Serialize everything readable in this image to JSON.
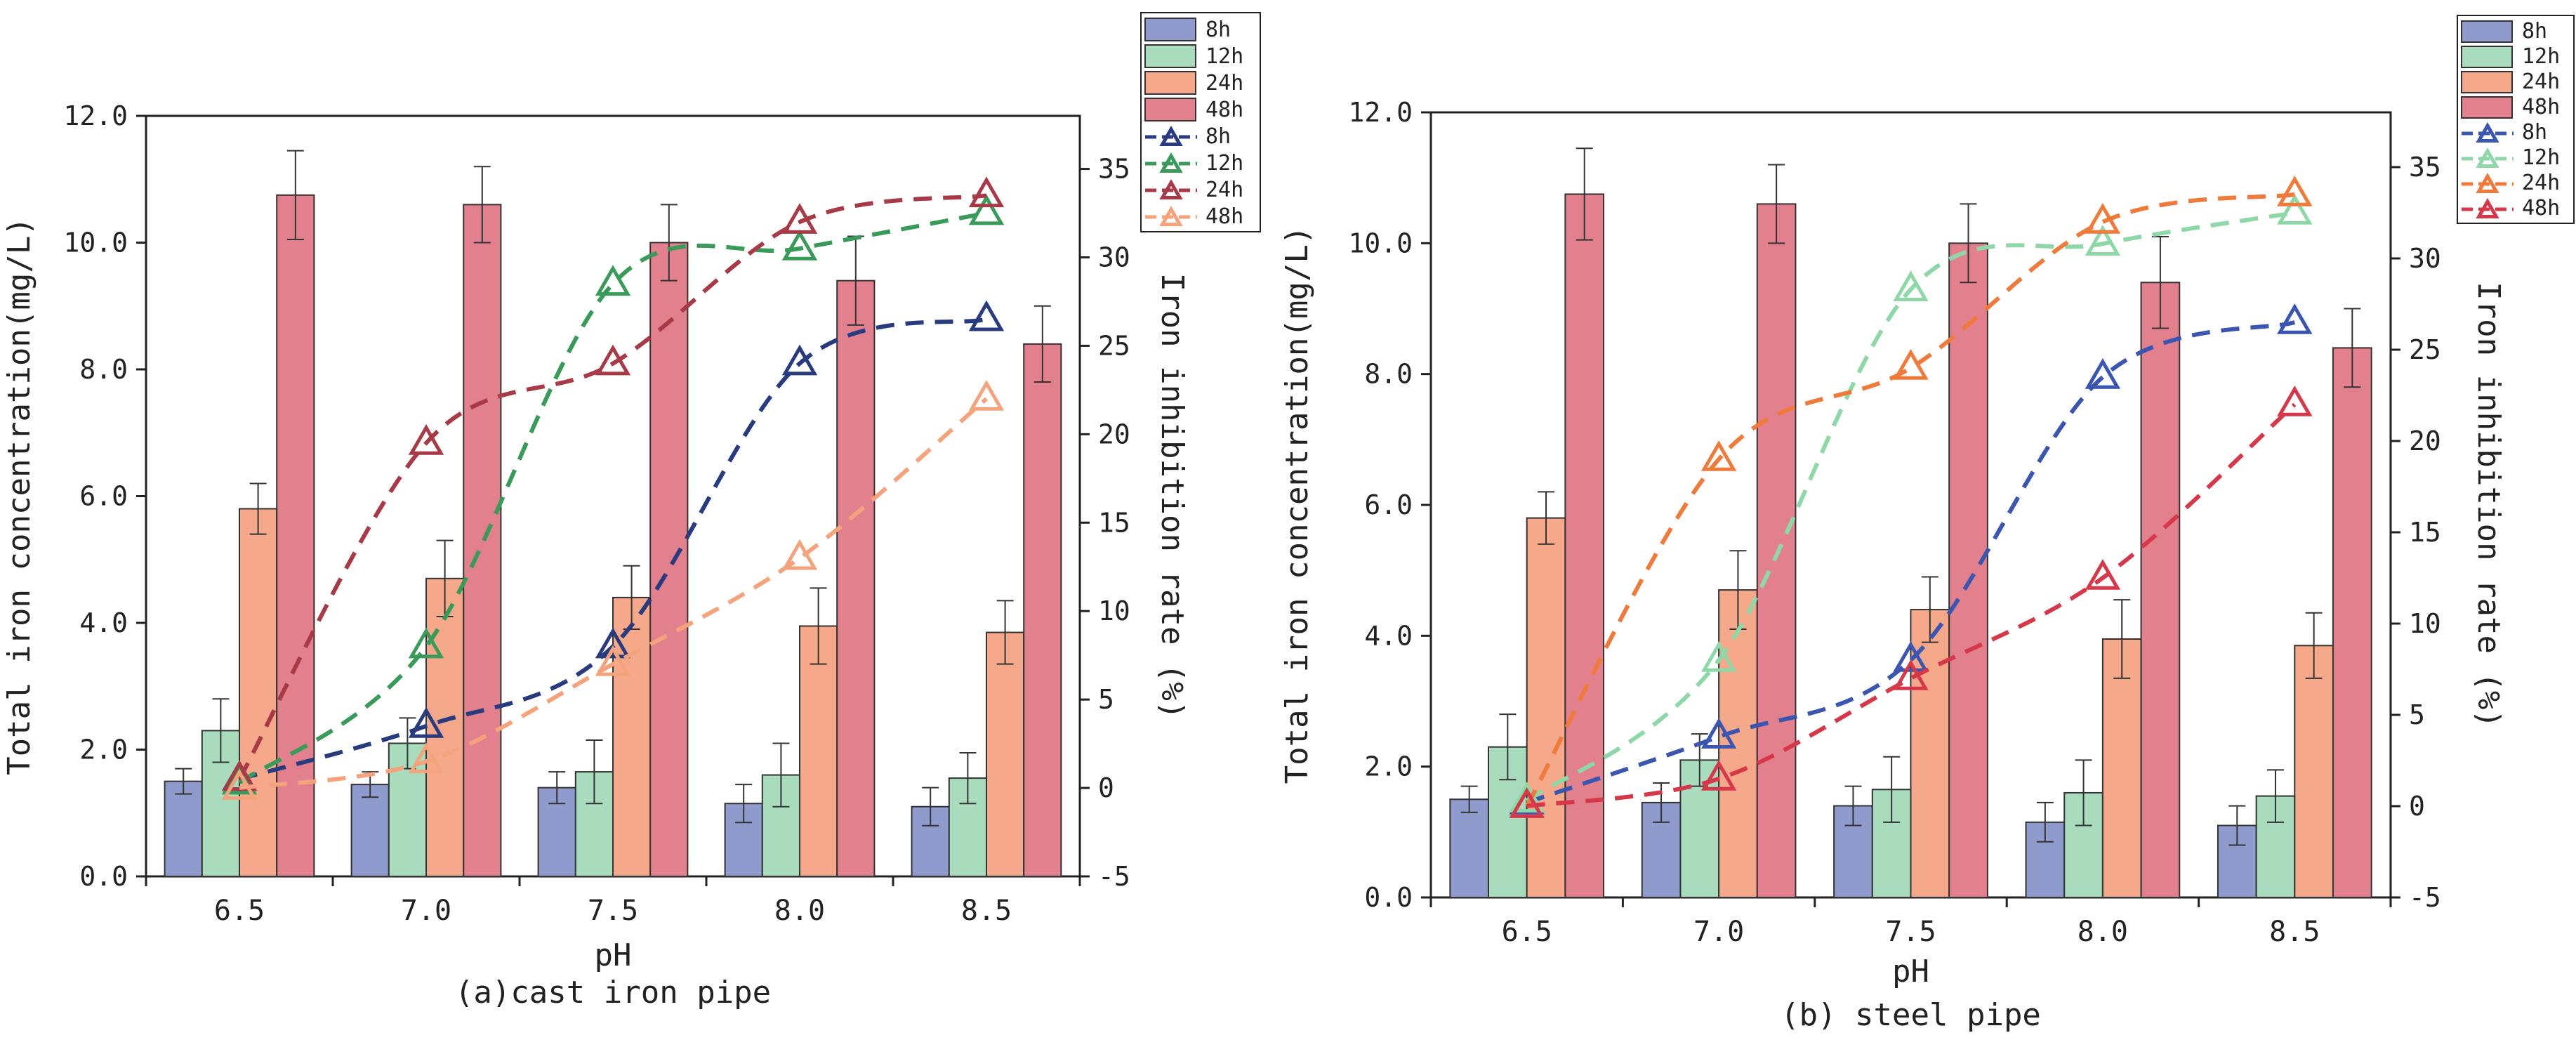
{
  "chart_data": [
    {
      "type": "bar",
      "caption": "(a)cast iron pipe",
      "xlabel": "pH",
      "ylabel": "Total iron concentration(mg/L)",
      "y2label": "Iron inhibition rate (%)",
      "categories": [
        "6.5",
        "7.0",
        "7.5",
        "8.0",
        "8.5"
      ],
      "ylim": [
        0,
        12
      ],
      "yticks": [
        "0.0",
        "2.0",
        "4.0",
        "6.0",
        "8.0",
        "10.0",
        "12.0"
      ],
      "y2lim": [
        -5,
        38
      ],
      "y2ticks": [
        "-5",
        "0",
        "5",
        "10",
        "15",
        "20",
        "25",
        "30",
        "35"
      ],
      "legend_position": "outside-top-right",
      "bar_series": [
        {
          "name": "8h",
          "color": "#8f9bcc",
          "values": [
            1.5,
            1.45,
            1.4,
            1.15,
            1.1
          ],
          "errors": [
            0.2,
            0.2,
            0.25,
            0.3,
            0.3
          ]
        },
        {
          "name": "12h",
          "color": "#a8dcbc",
          "values": [
            2.3,
            2.1,
            1.65,
            1.6,
            1.55
          ],
          "errors": [
            0.5,
            0.4,
            0.5,
            0.5,
            0.4
          ]
        },
        {
          "name": "24h",
          "color": "#f5a98a",
          "values": [
            5.8,
            4.7,
            4.4,
            3.95,
            3.85
          ],
          "errors": [
            0.4,
            0.6,
            0.5,
            0.6,
            0.5
          ]
        },
        {
          "name": "48h",
          "color": "#e3808d",
          "values": [
            10.75,
            10.6,
            10.0,
            9.4,
            8.4
          ],
          "errors": [
            0.7,
            0.6,
            0.6,
            0.7,
            0.6
          ]
        }
      ],
      "line_series": [
        {
          "name": "8h",
          "color": "#283b7e",
          "values": [
            0.5,
            3.5,
            8.0,
            24.0,
            26.5
          ]
        },
        {
          "name": "12h",
          "color": "#3a9a5a",
          "values": [
            0.3,
            8.0,
            28.5,
            30.5,
            32.5
          ]
        },
        {
          "name": "24h",
          "color": "#a83a48",
          "values": [
            0.5,
            19.5,
            24.0,
            32.0,
            33.5
          ]
        },
        {
          "name": "48h",
          "color": "#f5a37d",
          "values": [
            0.0,
            1.5,
            7.0,
            13.0,
            22.0
          ]
        }
      ]
    },
    {
      "type": "bar",
      "caption": "(b) steel pipe",
      "xlabel": "pH",
      "ylabel": "Total iron concentration(mg/L)",
      "y2label": "Iron inhibition rate (%)",
      "categories": [
        "6.5",
        "7.0",
        "7.5",
        "8.0",
        "8.5"
      ],
      "ylim": [
        0,
        12
      ],
      "yticks": [
        "0.0",
        "2.0",
        "4.0",
        "6.0",
        "8.0",
        "10.0",
        "12.0"
      ],
      "y2lim": [
        -5,
        38
      ],
      "y2ticks": [
        "-5",
        "0",
        "5",
        "10",
        "15",
        "20",
        "25",
        "30",
        "35"
      ],
      "legend_position": "outside-top-right",
      "bar_series": [
        {
          "name": "8h",
          "color": "#8f9bcc",
          "values": [
            1.5,
            1.45,
            1.4,
            1.15,
            1.1
          ],
          "errors": [
            0.2,
            0.3,
            0.3,
            0.3,
            0.3
          ]
        },
        {
          "name": "12h",
          "color": "#a8dcbc",
          "values": [
            2.3,
            2.1,
            1.65,
            1.6,
            1.55
          ],
          "errors": [
            0.5,
            0.4,
            0.5,
            0.5,
            0.4
          ]
        },
        {
          "name": "24h",
          "color": "#f5a98a",
          "values": [
            5.8,
            4.7,
            4.4,
            3.95,
            3.85
          ],
          "errors": [
            0.4,
            0.6,
            0.5,
            0.6,
            0.5
          ]
        },
        {
          "name": "48h",
          "color": "#e3808d",
          "values": [
            10.75,
            10.6,
            10.0,
            9.4,
            8.4
          ],
          "errors": [
            0.7,
            0.6,
            0.6,
            0.7,
            0.6
          ]
        }
      ],
      "line_series": [
        {
          "name": "8h",
          "color": "#3a56b0",
          "values": [
            0.2,
            3.8,
            8.0,
            23.5,
            26.5
          ]
        },
        {
          "name": "12h",
          "color": "#8ed8a8",
          "values": [
            0.3,
            8.0,
            28.3,
            30.8,
            32.5
          ]
        },
        {
          "name": "24h",
          "color": "#f07a3a",
          "values": [
            0.0,
            19.0,
            24.0,
            32.0,
            33.5
          ]
        },
        {
          "name": "48h",
          "color": "#d6384a",
          "values": [
            0.0,
            1.5,
            7.0,
            12.5,
            22.0
          ]
        }
      ]
    }
  ]
}
